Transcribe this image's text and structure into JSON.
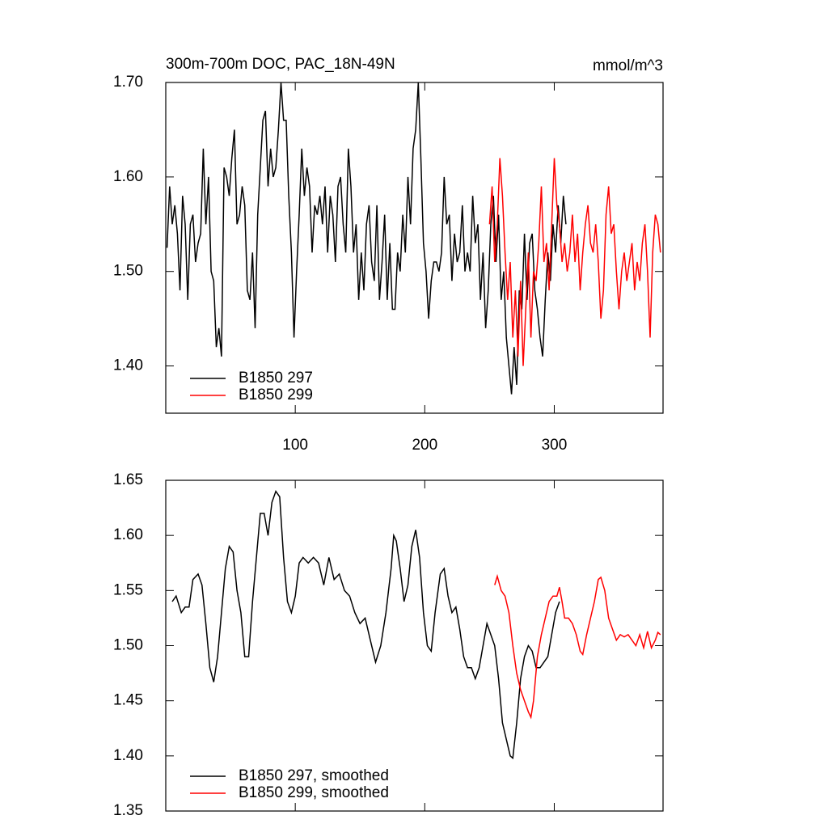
{
  "chart_data": [
    {
      "type": "line",
      "title": "300m-700m DOC, PAC_18N-49N",
      "units": "mmol/m^3",
      "xlim": [
        0,
        384
      ],
      "xticks": [
        100,
        200,
        300
      ],
      "ylim": [
        1.35,
        1.7
      ],
      "yticks": [
        {
          "value": 1.4,
          "label": "1.40"
        },
        {
          "value": 1.5,
          "label": "1.50"
        },
        {
          "value": 1.6,
          "label": "1.60"
        },
        {
          "value": 1.7,
          "label": "1.70"
        }
      ],
      "legend": "lower left",
      "series": [
        {
          "name": "B1850 297",
          "color": "#000000",
          "x": [
            1,
            3,
            5,
            7,
            9,
            11,
            13,
            15,
            17,
            19,
            21,
            23,
            25,
            27,
            29,
            31,
            33,
            35,
            37,
            39,
            41,
            43,
            45,
            47,
            49,
            51,
            53,
            55,
            57,
            59,
            61,
            63,
            65,
            67,
            69,
            71,
            73,
            75,
            77,
            79,
            81,
            83,
            85,
            87,
            89,
            91,
            93,
            95,
            97,
            99,
            101,
            103,
            105,
            107,
            109,
            111,
            113,
            115,
            117,
            119,
            121,
            123,
            125,
            127,
            129,
            131,
            133,
            135,
            137,
            139,
            141,
            143,
            145,
            147,
            149,
            151,
            153,
            155,
            157,
            159,
            161,
            163,
            165,
            167,
            169,
            171,
            173,
            175,
            177,
            179,
            181,
            183,
            185,
            187,
            189,
            191,
            193,
            195,
            197,
            199,
            201,
            203,
            205,
            207,
            209,
            211,
            213,
            215,
            217,
            219,
            221,
            223,
            225,
            227,
            229,
            231,
            233,
            235,
            237,
            239,
            241,
            243,
            245,
            247,
            249,
            251,
            253,
            255,
            257,
            259,
            261,
            263,
            265,
            267,
            269,
            271,
            273,
            275,
            277,
            279,
            281,
            283,
            285,
            287,
            289,
            291,
            293,
            295,
            297,
            299,
            301,
            303,
            305,
            307,
            309
          ],
          "values": [
            1.525,
            1.59,
            1.55,
            1.57,
            1.54,
            1.48,
            1.58,
            1.55,
            1.47,
            1.55,
            1.56,
            1.51,
            1.53,
            1.54,
            1.63,
            1.55,
            1.6,
            1.5,
            1.49,
            1.42,
            1.44,
            1.41,
            1.61,
            1.6,
            1.58,
            1.62,
            1.65,
            1.55,
            1.56,
            1.59,
            1.57,
            1.48,
            1.47,
            1.52,
            1.44,
            1.56,
            1.61,
            1.66,
            1.67,
            1.59,
            1.63,
            1.6,
            1.61,
            1.65,
            1.7,
            1.66,
            1.66,
            1.58,
            1.52,
            1.43,
            1.5,
            1.56,
            1.63,
            1.58,
            1.61,
            1.59,
            1.52,
            1.57,
            1.56,
            1.58,
            1.55,
            1.59,
            1.52,
            1.58,
            1.56,
            1.51,
            1.59,
            1.6,
            1.55,
            1.52,
            1.63,
            1.59,
            1.52,
            1.55,
            1.47,
            1.52,
            1.48,
            1.55,
            1.57,
            1.51,
            1.49,
            1.57,
            1.47,
            1.51,
            1.56,
            1.47,
            1.53,
            1.46,
            1.46,
            1.52,
            1.5,
            1.56,
            1.52,
            1.6,
            1.55,
            1.63,
            1.65,
            1.7,
            1.62,
            1.53,
            1.5,
            1.45,
            1.49,
            1.51,
            1.51,
            1.5,
            1.52,
            1.6,
            1.55,
            1.56,
            1.49,
            1.54,
            1.51,
            1.52,
            1.57,
            1.5,
            1.52,
            1.5,
            1.58,
            1.53,
            1.55,
            1.47,
            1.52,
            1.44,
            1.48,
            1.55,
            1.58,
            1.51,
            1.56,
            1.47,
            1.5,
            1.43,
            1.4,
            1.37,
            1.42,
            1.38,
            1.48,
            1.46,
            1.54,
            1.47,
            1.53,
            1.54,
            1.48,
            1.46,
            1.43,
            1.41,
            1.47,
            1.52,
            1.49,
            1.55,
            1.52,
            1.57,
            1.53,
            1.58,
            1.55
          ]
        },
        {
          "name": "B1850 299",
          "color": "#ff0000",
          "x": [
            250,
            252,
            254,
            256,
            258,
            260,
            262,
            264,
            266,
            268,
            270,
            272,
            274,
            276,
            278,
            280,
            282,
            284,
            286,
            288,
            290,
            292,
            294,
            296,
            298,
            300,
            302,
            304,
            306,
            308,
            310,
            312,
            314,
            316,
            318,
            320,
            322,
            324,
            326,
            328,
            330,
            332,
            334,
            336,
            338,
            340,
            342,
            344,
            346,
            348,
            350,
            352,
            354,
            356,
            358,
            360,
            362,
            364,
            366,
            368,
            370,
            372,
            374,
            376,
            378,
            380,
            382
          ],
          "values": [
            1.55,
            1.59,
            1.51,
            1.55,
            1.62,
            1.58,
            1.52,
            1.47,
            1.51,
            1.43,
            1.48,
            1.41,
            1.49,
            1.4,
            1.46,
            1.52,
            1.43,
            1.5,
            1.49,
            1.53,
            1.59,
            1.51,
            1.53,
            1.48,
            1.55,
            1.62,
            1.57,
            1.55,
            1.51,
            1.53,
            1.5,
            1.52,
            1.56,
            1.51,
            1.54,
            1.48,
            1.52,
            1.55,
            1.57,
            1.53,
            1.52,
            1.55,
            1.51,
            1.45,
            1.48,
            1.56,
            1.59,
            1.54,
            1.55,
            1.5,
            1.46,
            1.5,
            1.52,
            1.49,
            1.51,
            1.53,
            1.48,
            1.51,
            1.49,
            1.53,
            1.55,
            1.5,
            1.43,
            1.52,
            1.56,
            1.55,
            1.52
          ]
        }
      ]
    },
    {
      "type": "line",
      "xlim": [
        0,
        384
      ],
      "xticks": [
        100,
        200,
        300
      ],
      "xticklabels": false,
      "ylim": [
        1.35,
        1.65
      ],
      "yticks": [
        {
          "value": 1.35,
          "label": "1.35"
        },
        {
          "value": 1.4,
          "label": "1.40"
        },
        {
          "value": 1.45,
          "label": "1.45"
        },
        {
          "value": 1.5,
          "label": "1.50"
        },
        {
          "value": 1.55,
          "label": "1.55"
        },
        {
          "value": 1.6,
          "label": "1.60"
        },
        {
          "value": 1.65,
          "label": "1.65"
        }
      ],
      "legend": "lower left",
      "series": [
        {
          "name": "B1850 297, smoothed",
          "color": "#000000",
          "x": [
            5,
            8,
            12,
            15,
            18,
            21,
            25,
            28,
            31,
            34,
            37,
            40,
            43,
            46,
            49,
            52,
            55,
            58,
            61,
            64,
            67,
            70,
            73,
            76,
            79,
            82,
            85,
            88,
            91,
            94,
            97,
            100,
            103,
            106,
            110,
            114,
            118,
            122,
            126,
            130,
            134,
            138,
            142,
            146,
            150,
            154,
            158,
            162,
            166,
            170,
            174,
            176,
            178,
            181,
            184,
            187,
            190,
            193,
            196,
            199,
            202,
            205,
            208,
            212,
            215,
            218,
            221,
            224,
            227,
            230,
            233,
            236,
            239,
            242,
            245,
            248,
            251,
            254,
            257,
            260,
            263,
            266,
            268,
            271,
            274,
            277,
            280,
            283,
            286,
            289,
            292,
            295,
            298,
            301,
            304
          ],
          "values": [
            1.54,
            1.545,
            1.53,
            1.535,
            1.535,
            1.56,
            1.565,
            1.555,
            1.52,
            1.48,
            1.467,
            1.49,
            1.53,
            1.57,
            1.59,
            1.585,
            1.55,
            1.53,
            1.49,
            1.49,
            1.54,
            1.58,
            1.62,
            1.62,
            1.6,
            1.63,
            1.64,
            1.635,
            1.58,
            1.54,
            1.53,
            1.545,
            1.575,
            1.58,
            1.575,
            1.58,
            1.575,
            1.555,
            1.58,
            1.56,
            1.565,
            1.55,
            1.545,
            1.53,
            1.52,
            1.525,
            1.505,
            1.485,
            1.5,
            1.53,
            1.57,
            1.6,
            1.595,
            1.57,
            1.54,
            1.555,
            1.59,
            1.605,
            1.58,
            1.53,
            1.5,
            1.495,
            1.53,
            1.565,
            1.57,
            1.545,
            1.53,
            1.535,
            1.515,
            1.49,
            1.48,
            1.48,
            1.47,
            1.48,
            1.5,
            1.52,
            1.51,
            1.5,
            1.47,
            1.43,
            1.415,
            1.4,
            1.398,
            1.43,
            1.47,
            1.49,
            1.5,
            1.495,
            1.48,
            1.48,
            1.485,
            1.49,
            1.51,
            1.53,
            1.54
          ]
        },
        {
          "name": "B1850 299, smoothed",
          "color": "#ff0000",
          "x": [
            254,
            256,
            259,
            262,
            265,
            268,
            271,
            274,
            277,
            280,
            282,
            284,
            287,
            290,
            293,
            296,
            299,
            302,
            304,
            306,
            308,
            311,
            314,
            317,
            320,
            322,
            325,
            328,
            331,
            334,
            336,
            339,
            342,
            345,
            348,
            351,
            354,
            357,
            360,
            363,
            366,
            369,
            372,
            375,
            378,
            380,
            382
          ],
          "values": [
            1.555,
            1.563,
            1.55,
            1.545,
            1.53,
            1.5,
            1.475,
            1.46,
            1.45,
            1.44,
            1.435,
            1.45,
            1.49,
            1.51,
            1.525,
            1.54,
            1.545,
            1.545,
            1.553,
            1.54,
            1.525,
            1.525,
            1.52,
            1.51,
            1.495,
            1.492,
            1.51,
            1.525,
            1.54,
            1.56,
            1.562,
            1.55,
            1.525,
            1.515,
            1.505,
            1.51,
            1.508,
            1.51,
            1.505,
            1.5,
            1.51,
            1.498,
            1.513,
            1.498,
            1.505,
            1.512,
            1.51
          ]
        }
      ]
    }
  ]
}
